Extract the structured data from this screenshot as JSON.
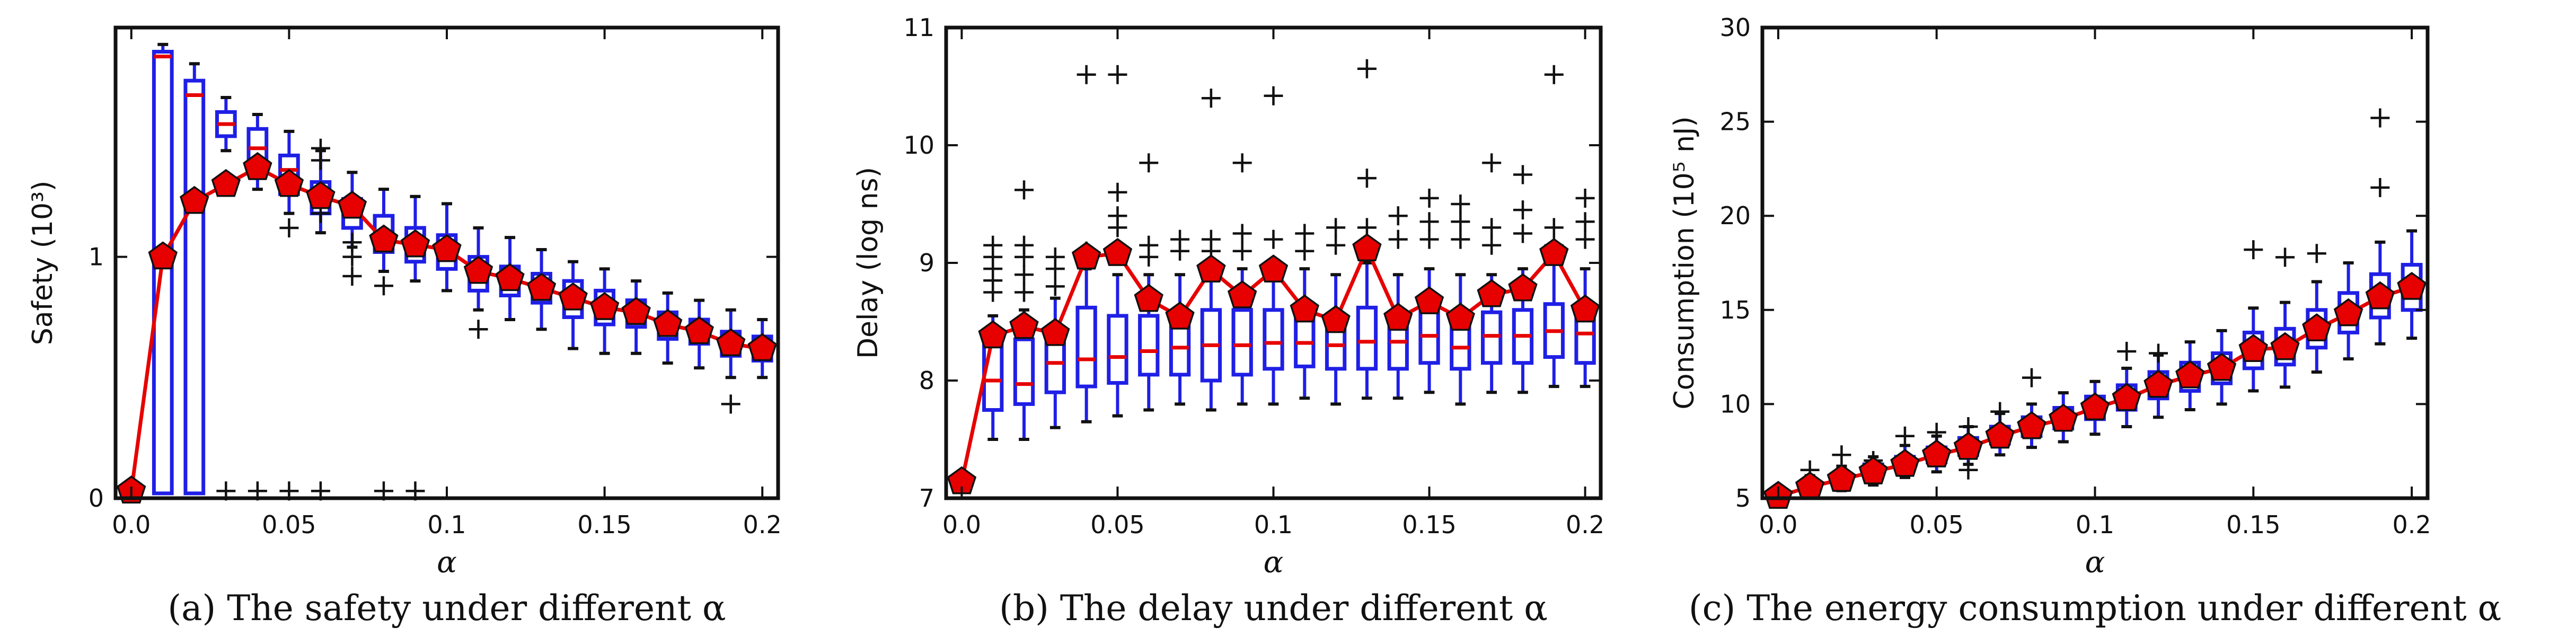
{
  "chart_data": [
    {
      "type": "box",
      "caption": "(a) The safety under different α",
      "xlabel": "α",
      "ylabel": "Safety (10³)",
      "xlim": [
        -0.005,
        0.205
      ],
      "ylim": [
        0,
        1.95
      ],
      "xticks": [
        "0.0",
        "0.05",
        "0.1",
        "0.15",
        "0.2"
      ],
      "xtick_values": [
        0,
        0.05,
        0.1,
        0.15,
        0.2
      ],
      "yticks": [
        "0",
        "1"
      ],
      "ytick_values": [
        0,
        1
      ],
      "x": [
        0.0,
        0.01,
        0.02,
        0.03,
        0.04,
        0.05,
        0.06,
        0.07,
        0.08,
        0.09,
        0.1,
        0.11,
        0.12,
        0.13,
        0.14,
        0.15,
        0.16,
        0.17,
        0.18,
        0.19,
        0.2
      ],
      "mean": [
        0.03,
        1.0,
        1.23,
        1.3,
        1.37,
        1.3,
        1.25,
        1.21,
        1.07,
        1.05,
        1.03,
        0.94,
        0.91,
        0.87,
        0.83,
        0.79,
        0.77,
        0.72,
        0.69,
        0.64,
        0.62
      ],
      "boxes": [
        {
          "q1": 0.02,
          "med": 0.03,
          "q3": 0.04,
          "wlo": 0.02,
          "whi": 0.04
        },
        {
          "q1": 0.02,
          "med": 1.83,
          "q3": 1.85,
          "wlo": 0.02,
          "whi": 1.88
        },
        {
          "q1": 0.02,
          "med": 1.67,
          "q3": 1.73,
          "wlo": 0.02,
          "whi": 1.8
        },
        {
          "q1": 1.5,
          "med": 1.55,
          "q3": 1.6,
          "wlo": 1.44,
          "whi": 1.66
        },
        {
          "q1": 1.36,
          "med": 1.45,
          "q3": 1.53,
          "wlo": 1.28,
          "whi": 1.59
        },
        {
          "q1": 1.26,
          "med": 1.36,
          "q3": 1.42,
          "wlo": 1.18,
          "whi": 1.52
        },
        {
          "q1": 1.18,
          "med": 1.26,
          "q3": 1.31,
          "wlo": 1.1,
          "whi": 1.44
        },
        {
          "q1": 1.12,
          "med": 1.18,
          "q3": 1.24,
          "wlo": 1.04,
          "whi": 1.35
        },
        {
          "q1": 1.02,
          "med": 1.08,
          "q3": 1.17,
          "wlo": 0.94,
          "whi": 1.28
        },
        {
          "q1": 0.98,
          "med": 1.03,
          "q3": 1.12,
          "wlo": 0.9,
          "whi": 1.25
        },
        {
          "q1": 0.95,
          "med": 1.0,
          "q3": 1.09,
          "wlo": 0.86,
          "whi": 1.22
        },
        {
          "q1": 0.86,
          "med": 0.93,
          "q3": 1.0,
          "wlo": 0.78,
          "whi": 1.12
        },
        {
          "q1": 0.84,
          "med": 0.9,
          "q3": 0.96,
          "wlo": 0.74,
          "whi": 1.08
        },
        {
          "q1": 0.81,
          "med": 0.87,
          "q3": 0.93,
          "wlo": 0.7,
          "whi": 1.03
        },
        {
          "q1": 0.75,
          "med": 0.83,
          "q3": 0.9,
          "wlo": 0.62,
          "whi": 0.98
        },
        {
          "q1": 0.72,
          "med": 0.78,
          "q3": 0.86,
          "wlo": 0.6,
          "whi": 0.95
        },
        {
          "q1": 0.71,
          "med": 0.76,
          "q3": 0.82,
          "wlo": 0.6,
          "whi": 0.9
        },
        {
          "q1": 0.66,
          "med": 0.71,
          "q3": 0.77,
          "wlo": 0.56,
          "whi": 0.85
        },
        {
          "q1": 0.64,
          "med": 0.69,
          "q3": 0.74,
          "wlo": 0.54,
          "whi": 0.82
        },
        {
          "q1": 0.59,
          "med": 0.64,
          "q3": 0.69,
          "wlo": 0.5,
          "whi": 0.78
        },
        {
          "q1": 0.57,
          "med": 0.62,
          "q3": 0.67,
          "wlo": 0.5,
          "whi": 0.74
        }
      ],
      "outliers": [
        [
          0.03,
          0.03
        ],
        [
          0.04,
          0.03
        ],
        [
          0.05,
          0.03
        ],
        [
          0.06,
          0.03
        ],
        [
          0.08,
          0.03
        ],
        [
          0.09,
          0.03
        ],
        [
          0.05,
          1.12
        ],
        [
          0.06,
          1.18
        ],
        [
          0.06,
          1.24
        ],
        [
          0.06,
          1.4
        ],
        [
          0.06,
          1.45
        ],
        [
          0.07,
          1.0
        ],
        [
          0.07,
          1.06
        ],
        [
          0.07,
          0.92
        ],
        [
          0.08,
          0.88
        ],
        [
          0.11,
          0.7
        ],
        [
          0.19,
          0.39
        ]
      ]
    },
    {
      "type": "box",
      "caption": "(b) The delay under different α",
      "xlabel": "α",
      "ylabel": "Delay (log ns)",
      "xlim": [
        -0.005,
        0.205
      ],
      "ylim": [
        7,
        11
      ],
      "xticks": [
        "0.0",
        "0.05",
        "0.1",
        "0.15",
        "0.2"
      ],
      "xtick_values": [
        0,
        0.05,
        0.1,
        0.15,
        0.2
      ],
      "yticks": [
        "7",
        "8",
        "9",
        "10",
        "11"
      ],
      "ytick_values": [
        7,
        8,
        9,
        10,
        11
      ],
      "x": [
        0.0,
        0.01,
        0.02,
        0.03,
        0.04,
        0.05,
        0.06,
        0.07,
        0.08,
        0.09,
        0.1,
        0.11,
        0.12,
        0.13,
        0.14,
        0.15,
        0.16,
        0.17,
        0.18,
        0.19,
        0.2
      ],
      "mean": [
        7.14,
        8.38,
        8.46,
        8.4,
        9.05,
        9.08,
        8.69,
        8.54,
        8.94,
        8.72,
        8.94,
        8.6,
        8.51,
        9.12,
        8.53,
        8.67,
        8.53,
        8.73,
        8.78,
        9.08,
        8.6
      ],
      "boxes": [
        {
          "q1": 7.12,
          "med": 7.14,
          "q3": 7.16,
          "wlo": 7.1,
          "whi": 7.18
        },
        {
          "q1": 7.75,
          "med": 8.0,
          "q3": 8.3,
          "wlo": 7.5,
          "whi": 8.55
        },
        {
          "q1": 7.8,
          "med": 7.97,
          "q3": 8.35,
          "wlo": 7.5,
          "whi": 8.6
        },
        {
          "q1": 7.9,
          "med": 8.15,
          "q3": 8.45,
          "wlo": 7.6,
          "whi": 8.7
        },
        {
          "q1": 7.95,
          "med": 8.18,
          "q3": 8.62,
          "wlo": 7.65,
          "whi": 8.95
        },
        {
          "q1": 7.98,
          "med": 8.2,
          "q3": 8.55,
          "wlo": 7.7,
          "whi": 8.9
        },
        {
          "q1": 8.05,
          "med": 8.25,
          "q3": 8.55,
          "wlo": 7.75,
          "whi": 8.9
        },
        {
          "q1": 8.05,
          "med": 8.28,
          "q3": 8.55,
          "wlo": 7.8,
          "whi": 8.9
        },
        {
          "q1": 8.0,
          "med": 8.3,
          "q3": 8.6,
          "wlo": 7.75,
          "whi": 8.95
        },
        {
          "q1": 8.05,
          "med": 8.3,
          "q3": 8.6,
          "wlo": 7.8,
          "whi": 8.95
        },
        {
          "q1": 8.1,
          "med": 8.32,
          "q3": 8.6,
          "wlo": 7.8,
          "whi": 9.0
        },
        {
          "q1": 8.12,
          "med": 8.32,
          "q3": 8.58,
          "wlo": 7.85,
          "whi": 8.95
        },
        {
          "q1": 8.1,
          "med": 8.3,
          "q3": 8.55,
          "wlo": 7.8,
          "whi": 8.9
        },
        {
          "q1": 8.1,
          "med": 8.33,
          "q3": 8.62,
          "wlo": 7.85,
          "whi": 9.0
        },
        {
          "q1": 8.1,
          "med": 8.33,
          "q3": 8.55,
          "wlo": 7.85,
          "whi": 8.9
        },
        {
          "q1": 8.15,
          "med": 8.38,
          "q3": 8.6,
          "wlo": 7.9,
          "whi": 8.95
        },
        {
          "q1": 8.1,
          "med": 8.28,
          "q3": 8.55,
          "wlo": 7.8,
          "whi": 8.9
        },
        {
          "q1": 8.15,
          "med": 8.38,
          "q3": 8.58,
          "wlo": 7.9,
          "whi": 8.9
        },
        {
          "q1": 8.15,
          "med": 8.38,
          "q3": 8.6,
          "wlo": 7.9,
          "whi": 8.95
        },
        {
          "q1": 8.2,
          "med": 8.42,
          "q3": 8.65,
          "wlo": 7.95,
          "whi": 9.0
        },
        {
          "q1": 8.15,
          "med": 8.4,
          "q3": 8.6,
          "wlo": 7.95,
          "whi": 8.95
        }
      ],
      "outliers": [
        [
          0.01,
          8.75
        ],
        [
          0.01,
          8.85
        ],
        [
          0.01,
          8.95
        ],
        [
          0.01,
          9.05
        ],
        [
          0.01,
          9.15
        ],
        [
          0.02,
          8.75
        ],
        [
          0.02,
          8.9
        ],
        [
          0.02,
          9.05
        ],
        [
          0.02,
          9.15
        ],
        [
          0.02,
          9.62
        ],
        [
          0.03,
          8.8
        ],
        [
          0.03,
          8.95
        ],
        [
          0.03,
          9.05
        ],
        [
          0.04,
          9.1
        ],
        [
          0.04,
          10.6
        ],
        [
          0.05,
          10.6
        ],
        [
          0.05,
          9.6
        ],
        [
          0.05,
          9.4
        ],
        [
          0.05,
          9.3
        ],
        [
          0.06,
          9.85
        ],
        [
          0.06,
          9.15
        ],
        [
          0.06,
          9.05
        ],
        [
          0.07,
          9.1
        ],
        [
          0.07,
          9.2
        ],
        [
          0.08,
          10.4
        ],
        [
          0.08,
          9.1
        ],
        [
          0.08,
          9.2
        ],
        [
          0.09,
          9.85
        ],
        [
          0.09,
          9.25
        ],
        [
          0.09,
          9.1
        ],
        [
          0.1,
          10.42
        ],
        [
          0.1,
          9.2
        ],
        [
          0.11,
          9.25
        ],
        [
          0.11,
          9.1
        ],
        [
          0.12,
          9.3
        ],
        [
          0.12,
          9.15
        ],
        [
          0.13,
          10.65
        ],
        [
          0.13,
          9.72
        ],
        [
          0.13,
          9.3
        ],
        [
          0.14,
          9.4
        ],
        [
          0.14,
          9.2
        ],
        [
          0.15,
          9.55
        ],
        [
          0.15,
          9.35
        ],
        [
          0.15,
          9.2
        ],
        [
          0.16,
          9.5
        ],
        [
          0.16,
          9.35
        ],
        [
          0.16,
          9.2
        ],
        [
          0.17,
          9.85
        ],
        [
          0.17,
          9.3
        ],
        [
          0.17,
          9.15
        ],
        [
          0.18,
          9.75
        ],
        [
          0.18,
          9.45
        ],
        [
          0.18,
          9.25
        ],
        [
          0.19,
          10.6
        ],
        [
          0.19,
          9.3
        ],
        [
          0.19,
          9.15
        ],
        [
          0.2,
          9.55
        ],
        [
          0.2,
          9.35
        ],
        [
          0.2,
          9.2
        ]
      ]
    },
    {
      "type": "box",
      "caption": "(c) The energy consumption under different α",
      "xlabel": "α",
      "ylabel": "Consumption (10⁵ nJ)",
      "xlim": [
        -0.005,
        0.205
      ],
      "ylim": [
        5,
        30
      ],
      "xticks": [
        "0.0",
        "0.05",
        "0.1",
        "0.15",
        "0.2"
      ],
      "xtick_values": [
        0,
        0.05,
        0.1,
        0.15,
        0.2
      ],
      "yticks": [
        "5",
        "10",
        "15",
        "20",
        "25",
        "30"
      ],
      "ytick_values": [
        5,
        10,
        15,
        20,
        25,
        30
      ],
      "x": [
        0.0,
        0.01,
        0.02,
        0.03,
        0.04,
        0.05,
        0.06,
        0.07,
        0.08,
        0.09,
        0.1,
        0.11,
        0.12,
        0.13,
        0.14,
        0.15,
        0.16,
        0.17,
        0.18,
        0.19,
        0.2
      ],
      "mean": [
        5.1,
        5.6,
        6.0,
        6.4,
        6.8,
        7.3,
        7.7,
        8.3,
        8.8,
        9.2,
        9.8,
        10.3,
        11.0,
        11.5,
        11.9,
        12.9,
        13.0,
        14.0,
        14.8,
        15.7,
        16.2
      ],
      "boxes": [
        {
          "q1": 5.0,
          "med": 5.1,
          "q3": 5.2,
          "wlo": 5.0,
          "whi": 5.3
        },
        {
          "q1": 5.3,
          "med": 5.6,
          "q3": 5.9,
          "wlo": 5.1,
          "whi": 6.2
        },
        {
          "q1": 5.7,
          "med": 6.0,
          "q3": 6.3,
          "wlo": 5.4,
          "whi": 6.7
        },
        {
          "q1": 6.1,
          "med": 6.4,
          "q3": 6.8,
          "wlo": 5.7,
          "whi": 7.2
        },
        {
          "q1": 6.5,
          "med": 6.8,
          "q3": 7.2,
          "wlo": 6.1,
          "whi": 7.8
        },
        {
          "q1": 6.9,
          "med": 7.3,
          "q3": 7.7,
          "wlo": 6.4,
          "whi": 8.3
        },
        {
          "q1": 7.3,
          "med": 7.7,
          "q3": 8.2,
          "wlo": 6.8,
          "whi": 8.8
        },
        {
          "q1": 7.9,
          "med": 8.3,
          "q3": 8.8,
          "wlo": 7.3,
          "whi": 9.5
        },
        {
          "q1": 8.3,
          "med": 8.8,
          "q3": 9.3,
          "wlo": 7.7,
          "whi": 10.0
        },
        {
          "q1": 8.7,
          "med": 9.2,
          "q3": 9.8,
          "wlo": 8.0,
          "whi": 10.6
        },
        {
          "q1": 9.2,
          "med": 9.8,
          "q3": 10.4,
          "wlo": 8.4,
          "whi": 11.2
        },
        {
          "q1": 9.7,
          "med": 10.3,
          "q3": 11.0,
          "wlo": 8.8,
          "whi": 11.9
        },
        {
          "q1": 10.3,
          "med": 11.0,
          "q3": 11.7,
          "wlo": 9.3,
          "whi": 12.6
        },
        {
          "q1": 10.7,
          "med": 11.5,
          "q3": 12.2,
          "wlo": 9.7,
          "whi": 13.3
        },
        {
          "q1": 11.1,
          "med": 11.9,
          "q3": 12.7,
          "wlo": 10.0,
          "whi": 13.9
        },
        {
          "q1": 11.9,
          "med": 12.8,
          "q3": 13.8,
          "wlo": 10.7,
          "whi": 15.1
        },
        {
          "q1": 12.1,
          "med": 13.0,
          "q3": 14.0,
          "wlo": 10.9,
          "whi": 15.4
        },
        {
          "q1": 13.0,
          "med": 14.0,
          "q3": 15.0,
          "wlo": 11.7,
          "whi": 16.5
        },
        {
          "q1": 13.8,
          "med": 14.8,
          "q3": 15.9,
          "wlo": 12.4,
          "whi": 17.5
        },
        {
          "q1": 14.6,
          "med": 15.7,
          "q3": 16.9,
          "wlo": 13.2,
          "whi": 18.6
        },
        {
          "q1": 15.0,
          "med": 16.2,
          "q3": 17.4,
          "wlo": 13.5,
          "whi": 19.2
        }
      ],
      "outliers": [
        [
          0.01,
          6.5
        ],
        [
          0.02,
          7.3
        ],
        [
          0.03,
          7.0
        ],
        [
          0.04,
          8.3
        ],
        [
          0.05,
          8.5
        ],
        [
          0.06,
          8.8
        ],
        [
          0.06,
          6.5
        ],
        [
          0.07,
          9.6
        ],
        [
          0.08,
          11.4
        ],
        [
          0.11,
          12.8
        ],
        [
          0.12,
          12.7
        ],
        [
          0.15,
          18.2
        ],
        [
          0.16,
          17.8
        ],
        [
          0.17,
          18.0
        ],
        [
          0.19,
          25.2
        ],
        [
          0.19,
          21.5
        ]
      ]
    }
  ]
}
